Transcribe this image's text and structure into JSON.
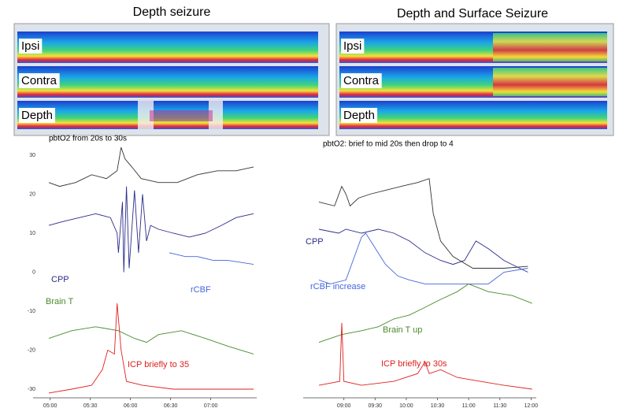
{
  "panels": {
    "left": {
      "title": "Depth seizure",
      "rows": [
        "Ipsi",
        "Contra",
        "Depth"
      ]
    },
    "right": {
      "title": "Depth and Surface Seizure",
      "rows": [
        "Ipsi",
        "Contra",
        "Depth"
      ]
    }
  },
  "chart_data": [
    {
      "type": "line",
      "annotation": "pbtO2 from 20s to 30s",
      "xlim": [
        299,
        452
      ],
      "ylim": [
        -30,
        30
      ],
      "xticks": [
        {
          "value": 300,
          "label": "05:00"
        },
        {
          "value": 330,
          "label": "05:30"
        },
        {
          "value": 360,
          "label": "06:00"
        },
        {
          "value": 390,
          "label": "06:30"
        },
        {
          "value": 420,
          "label": "07:00"
        }
      ],
      "yticks": [
        30,
        20,
        10,
        0,
        -10,
        -20,
        -30
      ],
      "series": [
        {
          "color": "#333333",
          "x": [
            299,
            307,
            319,
            331,
            342,
            350,
            353,
            356,
            361,
            368,
            381,
            395,
            410,
            425,
            439,
            452
          ],
          "values": [
            23,
            22,
            23,
            25,
            24,
            26,
            32,
            29,
            27,
            24,
            23,
            23,
            25,
            26,
            26,
            27
          ]
        },
        {
          "name": "CPP",
          "color": "#2b2b8a",
          "x": [
            299,
            310,
            322,
            334,
            345,
            350,
            351,
            354,
            355,
            357,
            359,
            363,
            366,
            369,
            372,
            375,
            381,
            392,
            404,
            416,
            428,
            439,
            452
          ],
          "values": [
            12,
            13,
            14,
            15,
            14,
            10,
            5,
            18,
            0,
            22,
            1,
            21,
            5,
            20,
            8,
            12,
            11,
            10,
            9,
            10,
            12,
            14,
            15
          ]
        },
        {
          "name": "rCBF",
          "color": "#4466dd",
          "x": [
            389,
            401,
            410,
            422,
            433,
            452
          ],
          "values": [
            5,
            4,
            4,
            3,
            3,
            2
          ]
        },
        {
          "name": "Brain T",
          "color": "#4a8a2a",
          "x": [
            299,
            316,
            334,
            351,
            363,
            372,
            381,
            398,
            416,
            433,
            452
          ],
          "values": [
            -17,
            -15,
            -14,
            -15,
            -17,
            -18,
            -16,
            -15,
            -17,
            -19,
            -21
          ]
        },
        {
          "name": "ICP briefly to 35",
          "color": "#e02020",
          "x": [
            299,
            316,
            331,
            339,
            343,
            348,
            350,
            353,
            357,
            369,
            392,
            422,
            452
          ],
          "values": [
            -31,
            -30,
            -29,
            -25,
            -20,
            -21,
            -8,
            -20,
            -28,
            -29,
            -30,
            -30,
            -30
          ]
        }
      ]
    },
    {
      "type": "line",
      "annotation": "pbtO2: brief to mid 20s then drop to 4",
      "xlim": [
        516,
        722
      ],
      "ylim": [
        -30,
        30
      ],
      "xticks": [
        {
          "value": 540,
          "label": "09:00"
        },
        {
          "value": 570,
          "label": "09:30"
        },
        {
          "value": 600,
          "label": "10:00"
        },
        {
          "value": 630,
          "label": "10:30"
        },
        {
          "value": 660,
          "label": "11:00"
        },
        {
          "value": 690,
          "label": "11:30"
        },
        {
          "value": 720,
          "label": "12:00"
        }
      ],
      "series": [
        {
          "color": "#333333",
          "x": [
            516,
            531,
            538,
            542,
            546,
            554,
            565,
            580,
            595,
            611,
            622,
            626,
            633,
            645,
            664,
            694,
            717
          ],
          "values": [
            18,
            17,
            22,
            20,
            17,
            19,
            20,
            21,
            22,
            23,
            24,
            15,
            8,
            4,
            1,
            1,
            1.5
          ]
        },
        {
          "name": "CPP",
          "color": "#2b2b8a",
          "x": [
            516,
            535,
            542,
            557,
            573,
            588,
            603,
            618,
            633,
            645,
            656,
            667,
            679,
            694,
            709,
            717
          ],
          "values": [
            11,
            10,
            11,
            10,
            11,
            10,
            8,
            5,
            3,
            2,
            3,
            8,
            6,
            3,
            1,
            0
          ]
        },
        {
          "name": "rCBF increase",
          "color": "#4466dd",
          "x": [
            516,
            527,
            542,
            557,
            561,
            580,
            592,
            603,
            618,
            649,
            679,
            694,
            717
          ],
          "values": [
            -2,
            -3,
            -2,
            9,
            10,
            2,
            -1,
            -2,
            -3,
            -3,
            -3,
            0,
            1
          ]
        },
        {
          "name": "Brain T up",
          "color": "#4a8a2a",
          "x": [
            516,
            527,
            538,
            557,
            573,
            588,
            603,
            618,
            633,
            649,
            660,
            679,
            702,
            721
          ],
          "values": [
            -18,
            -17,
            -16,
            -15,
            -14,
            -12,
            -11,
            -9,
            -7,
            -5,
            -3,
            -5,
            -6,
            -8
          ]
        },
        {
          "name": "ICP briefly to 30s",
          "color": "#e02020",
          "x": [
            516,
            536,
            538,
            540,
            557,
            588,
            611,
            618,
            622,
            633,
            649,
            671,
            694,
            721
          ],
          "values": [
            -29,
            -28,
            -13,
            -28,
            -29,
            -28,
            -26,
            -23,
            -26,
            -25,
            -27,
            -28,
            -29,
            -30
          ]
        }
      ]
    }
  ]
}
